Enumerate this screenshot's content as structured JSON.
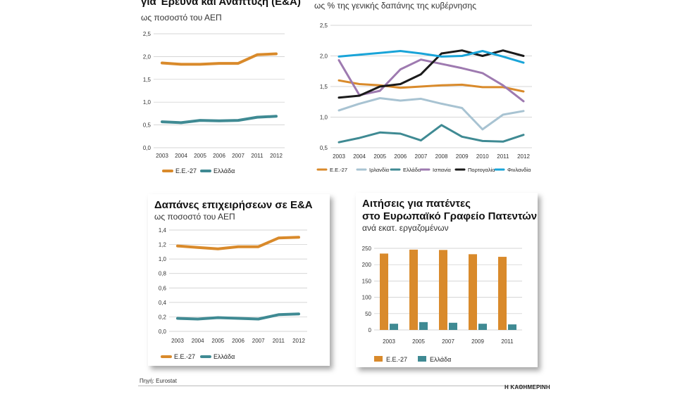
{
  "source": "Πηγή: Eurostat",
  "brand": "Η ΚΑΘΗΜΕΡΙΝΗ",
  "chart_data": [
    {
      "type": "line",
      "title": "για Έρευνα και Ανάπτυξη (Ε&Α)",
      "subtitle": "ως ποσοστό του ΑΕΠ",
      "categories": [
        "2003",
        "2004",
        "2005",
        "2006",
        "2007",
        "2011",
        "2012"
      ],
      "yticks": [
        "0,0",
        "0,5",
        "1,0",
        "1,5",
        "2,0",
        "2,5"
      ],
      "ylim": [
        0,
        2.5
      ],
      "series": [
        {
          "name": "Ε.Ε.-27",
          "color": "#d98a2b",
          "values": [
            1.86,
            1.83,
            1.83,
            1.85,
            1.85,
            2.04,
            2.06
          ]
        },
        {
          "name": "Ελλάδα",
          "color": "#3f8a93",
          "values": [
            0.57,
            0.55,
            0.6,
            0.59,
            0.6,
            0.67,
            0.69
          ]
        }
      ]
    },
    {
      "type": "line",
      "title": "",
      "subtitle": "ως % της γενικής δαπάνης της κυβέρνησης",
      "categories": [
        "2003",
        "2004",
        "2005",
        "2006",
        "2007",
        "2008",
        "2009",
        "2010",
        "2011",
        "2012"
      ],
      "yticks": [
        "0,5",
        "1,0",
        "1,5",
        "2,0",
        "2,5"
      ],
      "ylim": [
        0.5,
        2.5
      ],
      "series": [
        {
          "name": "Ε.Ε.-27",
          "color": "#d98a2b",
          "values": [
            1.6,
            1.54,
            1.52,
            1.48,
            1.5,
            1.52,
            1.53,
            1.49,
            1.49,
            1.42
          ]
        },
        {
          "name": "Ιρλανδία",
          "color": "#a8c3d2",
          "values": [
            1.11,
            1.22,
            1.31,
            1.27,
            1.3,
            1.22,
            1.15,
            0.8,
            1.04,
            1.1
          ]
        },
        {
          "name": "Ελλάδα",
          "color": "#3f8a93",
          "values": [
            0.59,
            0.66,
            0.75,
            0.73,
            0.62,
            0.87,
            0.68,
            0.61,
            0.6,
            0.71
          ]
        },
        {
          "name": "Ισπανία",
          "color": "#9e7ab0",
          "values": [
            1.93,
            1.36,
            1.43,
            1.78,
            1.94,
            1.87,
            1.8,
            1.72,
            1.52,
            1.26
          ]
        },
        {
          "name": "Πορτογαλία",
          "color": "#1a1a1a",
          "values": [
            1.32,
            1.35,
            1.5,
            1.54,
            1.7,
            2.04,
            2.09,
            2.0,
            2.09,
            2.0
          ]
        },
        {
          "name": "Φινλανδία",
          "color": "#19a4d8",
          "values": [
            1.99,
            2.02,
            2.05,
            2.08,
            2.04,
            1.99,
            2.0,
            2.08,
            1.99,
            1.89
          ]
        }
      ]
    },
    {
      "type": "line",
      "title": "Δαπάνες επιχειρήσεων σε Ε&Α",
      "subtitle": "ως ποσοστό του ΑΕΠ",
      "categories": [
        "2003",
        "2004",
        "2005",
        "2006",
        "2007",
        "2011",
        "2012"
      ],
      "yticks": [
        "0,0",
        "0,2",
        "0,4",
        "0,6",
        "0,8",
        "1,0",
        "1,2",
        "1,4"
      ],
      "ylim": [
        0,
        1.4
      ],
      "series": [
        {
          "name": "Ε.Ε.-27",
          "color": "#d98a2b",
          "values": [
            1.18,
            1.16,
            1.14,
            1.17,
            1.17,
            1.29,
            1.3
          ]
        },
        {
          "name": "Ελλάδα",
          "color": "#3f8a93",
          "values": [
            0.18,
            0.17,
            0.19,
            0.18,
            0.17,
            0.23,
            0.24
          ]
        }
      ]
    },
    {
      "type": "bar",
      "title": "Αιτήσεις για πατέντες",
      "title2": "στο Ευρωπαϊκό Γραφείο Πατεντών",
      "subtitle": "ανά εκατ. εργαζομένων",
      "categories": [
        "2003",
        "2005",
        "2007",
        "2009",
        "2011"
      ],
      "yticks": [
        "0",
        "50",
        "100",
        "150",
        "200",
        "250"
      ],
      "ylim": [
        0,
        250
      ],
      "series": [
        {
          "name": "Ε.Ε.-27",
          "color": "#d98a2b",
          "values": [
            234,
            246,
            245,
            232,
            224
          ]
        },
        {
          "name": "Ελλάδα",
          "color": "#3f8a93",
          "values": [
            19,
            24,
            22,
            19,
            17
          ]
        }
      ]
    }
  ]
}
